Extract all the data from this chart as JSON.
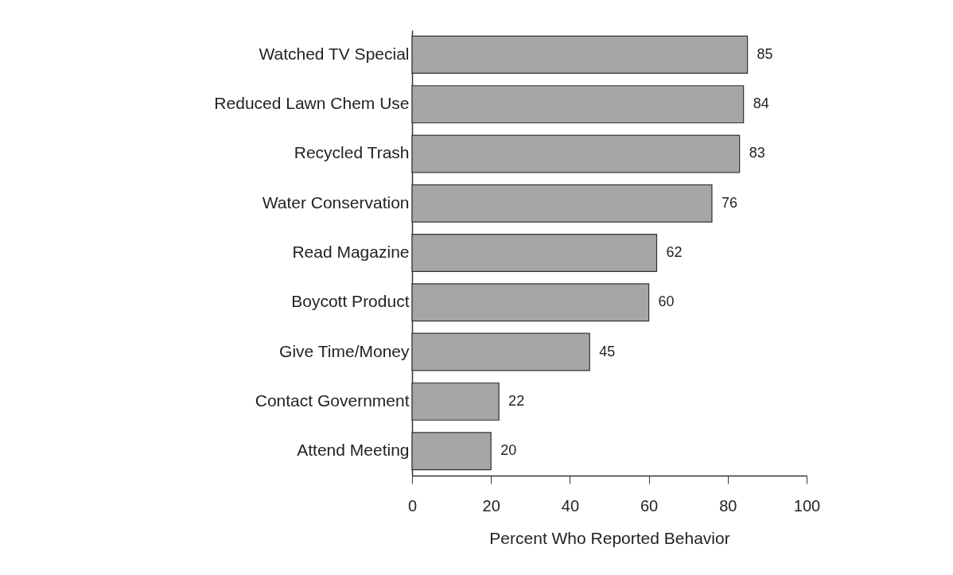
{
  "chart_data": {
    "type": "bar",
    "orientation": "horizontal",
    "xlabel": "Percent Who Reported Behavior",
    "categories": [
      "Watched TV Special",
      "Reduced Lawn Chem Use",
      "Recycled Trash",
      "Water Conservation",
      "Read Magazine",
      "Boycott Product",
      "Give Time/Money",
      "Contact Government",
      "Attend Meeting"
    ],
    "values": [
      85,
      84,
      83,
      76,
      62,
      60,
      45,
      22,
      20
    ],
    "color": "#a6a6a6",
    "xlim": [
      0,
      100
    ],
    "xticks": [
      0,
      20,
      40,
      60,
      80,
      100
    ],
    "grid": false,
    "data_labels": true
  }
}
